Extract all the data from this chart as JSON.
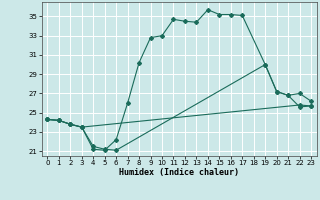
{
  "xlabel": "Humidex (Indice chaleur)",
  "bg_color": "#cce8e8",
  "grid_color": "#ffffff",
  "line_color": "#1a6b5a",
  "xlim": [
    -0.5,
    23.5
  ],
  "ylim": [
    20.5,
    36.5
  ],
  "xticks": [
    0,
    1,
    2,
    3,
    4,
    5,
    6,
    7,
    8,
    9,
    10,
    11,
    12,
    13,
    14,
    15,
    16,
    17,
    18,
    19,
    20,
    21,
    22,
    23
  ],
  "yticks": [
    21,
    23,
    25,
    27,
    29,
    31,
    33,
    35
  ],
  "line1_x": [
    0,
    1,
    2,
    3,
    4,
    5,
    6,
    7,
    8,
    9,
    10,
    11,
    12,
    13,
    14,
    15,
    16,
    17,
    19,
    20,
    21,
    22,
    23
  ],
  "line1_y": [
    24.3,
    24.2,
    23.8,
    23.5,
    21.2,
    21.1,
    22.2,
    26.0,
    30.2,
    32.8,
    33.0,
    34.7,
    34.5,
    34.4,
    35.7,
    35.2,
    35.2,
    35.1,
    30.0,
    27.2,
    26.8,
    25.6,
    25.7
  ],
  "line2_x": [
    0,
    1,
    2,
    3,
    4,
    5,
    6,
    19,
    20,
    21,
    22,
    23
  ],
  "line2_y": [
    24.3,
    24.2,
    23.8,
    23.5,
    21.5,
    21.2,
    21.1,
    30.0,
    27.2,
    26.8,
    27.0,
    26.2
  ],
  "line3_x": [
    0,
    1,
    2,
    3,
    22,
    23
  ],
  "line3_y": [
    24.3,
    24.2,
    23.8,
    23.5,
    25.8,
    25.7
  ]
}
